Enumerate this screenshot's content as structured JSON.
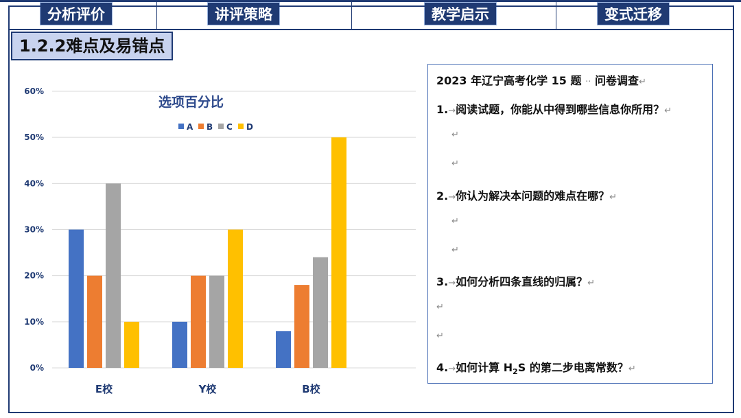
{
  "nav": {
    "tabs": [
      "分析评价",
      "讲评策略",
      "教学启示",
      "变式迁移"
    ]
  },
  "section_title": "1.2.2难点及易错点",
  "chart_data": {
    "type": "bar",
    "title": "选项百分比",
    "categories": [
      "E校",
      "Y校",
      "B校"
    ],
    "series": [
      {
        "name": "A",
        "values": [
          30,
          10,
          8
        ],
        "color": "#4472c4"
      },
      {
        "name": "B",
        "values": [
          20,
          20,
          18
        ],
        "color": "#ed7d31"
      },
      {
        "name": "C",
        "values": [
          40,
          20,
          24
        ],
        "color": "#a5a5a5"
      },
      {
        "name": "D",
        "values": [
          10,
          30,
          50
        ],
        "color": "#ffc000"
      }
    ],
    "ylim": [
      0,
      60
    ],
    "yticks": [
      "0%",
      "10%",
      "20%",
      "30%",
      "40%",
      "50%",
      "60%"
    ],
    "grid": true,
    "legend_position": "top"
  },
  "survey": {
    "title": "2023 年辽宁高考化学 15 题",
    "title_suffix": "问卷调查",
    "questions": [
      {
        "num": "1.",
        "text": "阅读试题，你能从中得到哪些信息你所用？"
      },
      {
        "num": "2.",
        "text": "你认为解决本问题的难点在哪？"
      },
      {
        "num": "3.",
        "text": "如何分析四条直线的归属？"
      },
      {
        "num": "4.",
        "text_pre": "如何计算 H",
        "sub": "2",
        "text_post": "S 的第二步电离常数？"
      }
    ],
    "para_mark": "↵",
    "arrow": "→",
    "dots": "··"
  }
}
